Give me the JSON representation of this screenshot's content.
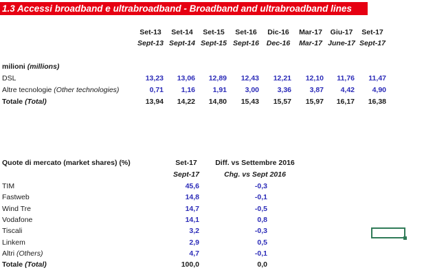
{
  "title": "1.3 Accessi broadband e ultrabroadband - Broadband and ultrabroadband lines",
  "table1": {
    "columns": [
      {
        "it": "Set-13",
        "en": "Sept-13"
      },
      {
        "it": "Set-14",
        "en": "Sept-14"
      },
      {
        "it": "Set-15",
        "en": "Sept-15"
      },
      {
        "it": "Set-16",
        "en": "Sept-16"
      },
      {
        "it": "Dic-16",
        "en": "Dec-16"
      },
      {
        "it": "Mar-17",
        "en": "Mar-17"
      },
      {
        "it": "Giu-17",
        "en": "June-17"
      },
      {
        "it": "Set-17",
        "en": "Sept-17"
      }
    ],
    "unit_label": "milioni",
    "unit_label_en": "(millions)",
    "rows": [
      {
        "label": "DSL",
        "label_en": "",
        "values": [
          "13,23",
          "13,06",
          "12,89",
          "12,43",
          "12,21",
          "12,10",
          "11,76",
          "11,47"
        ]
      },
      {
        "label": "Altre tecnologie ",
        "label_en": "(Other technologies)",
        "values": [
          "0,71",
          "1,16",
          "1,91",
          "3,00",
          "3,36",
          "3,87",
          "4,42",
          "4,90"
        ]
      }
    ],
    "total": {
      "label": "Totale ",
      "label_en": "(Total)",
      "values": [
        "13,94",
        "14,22",
        "14,80",
        "15,43",
        "15,57",
        "15,97",
        "16,17",
        "16,38"
      ]
    }
  },
  "table2": {
    "heading": "Quote di mercato (market shares)  (%)",
    "col1": {
      "it": "Set-17",
      "en": "Sept-17"
    },
    "col2": {
      "it": "Diff. vs Settembre 2016",
      "en": "Chg. vs Sept 2016"
    },
    "rows": [
      {
        "label": "TIM",
        "label_en": "",
        "share": "45,6",
        "diff": "-0,3"
      },
      {
        "label": "Fastweb",
        "label_en": "",
        "share": "14,8",
        "diff": "-0,1"
      },
      {
        "label": "Wind Tre",
        "label_en": "",
        "share": "14,7",
        "diff": "-0,5"
      },
      {
        "label": "Vodafone",
        "label_en": "",
        "share": "14,1",
        "diff": "0,8"
      },
      {
        "label": "Tiscali",
        "label_en": "",
        "share": "3,2",
        "diff": "-0,3"
      },
      {
        "label": "Linkem",
        "label_en": "",
        "share": "2,9",
        "diff": "0,5"
      },
      {
        "label": "Altri ",
        "label_en": "(Others)",
        "share": "4,7",
        "diff": "-0,1"
      }
    ],
    "total": {
      "label": "Totale ",
      "label_en": "(Total)",
      "share": "100,0",
      "diff": "0,0"
    }
  },
  "colors": {
    "title_bg": "#e60012",
    "value_blue": "#2b2bb8",
    "selection_green": "#2f7a57"
  }
}
